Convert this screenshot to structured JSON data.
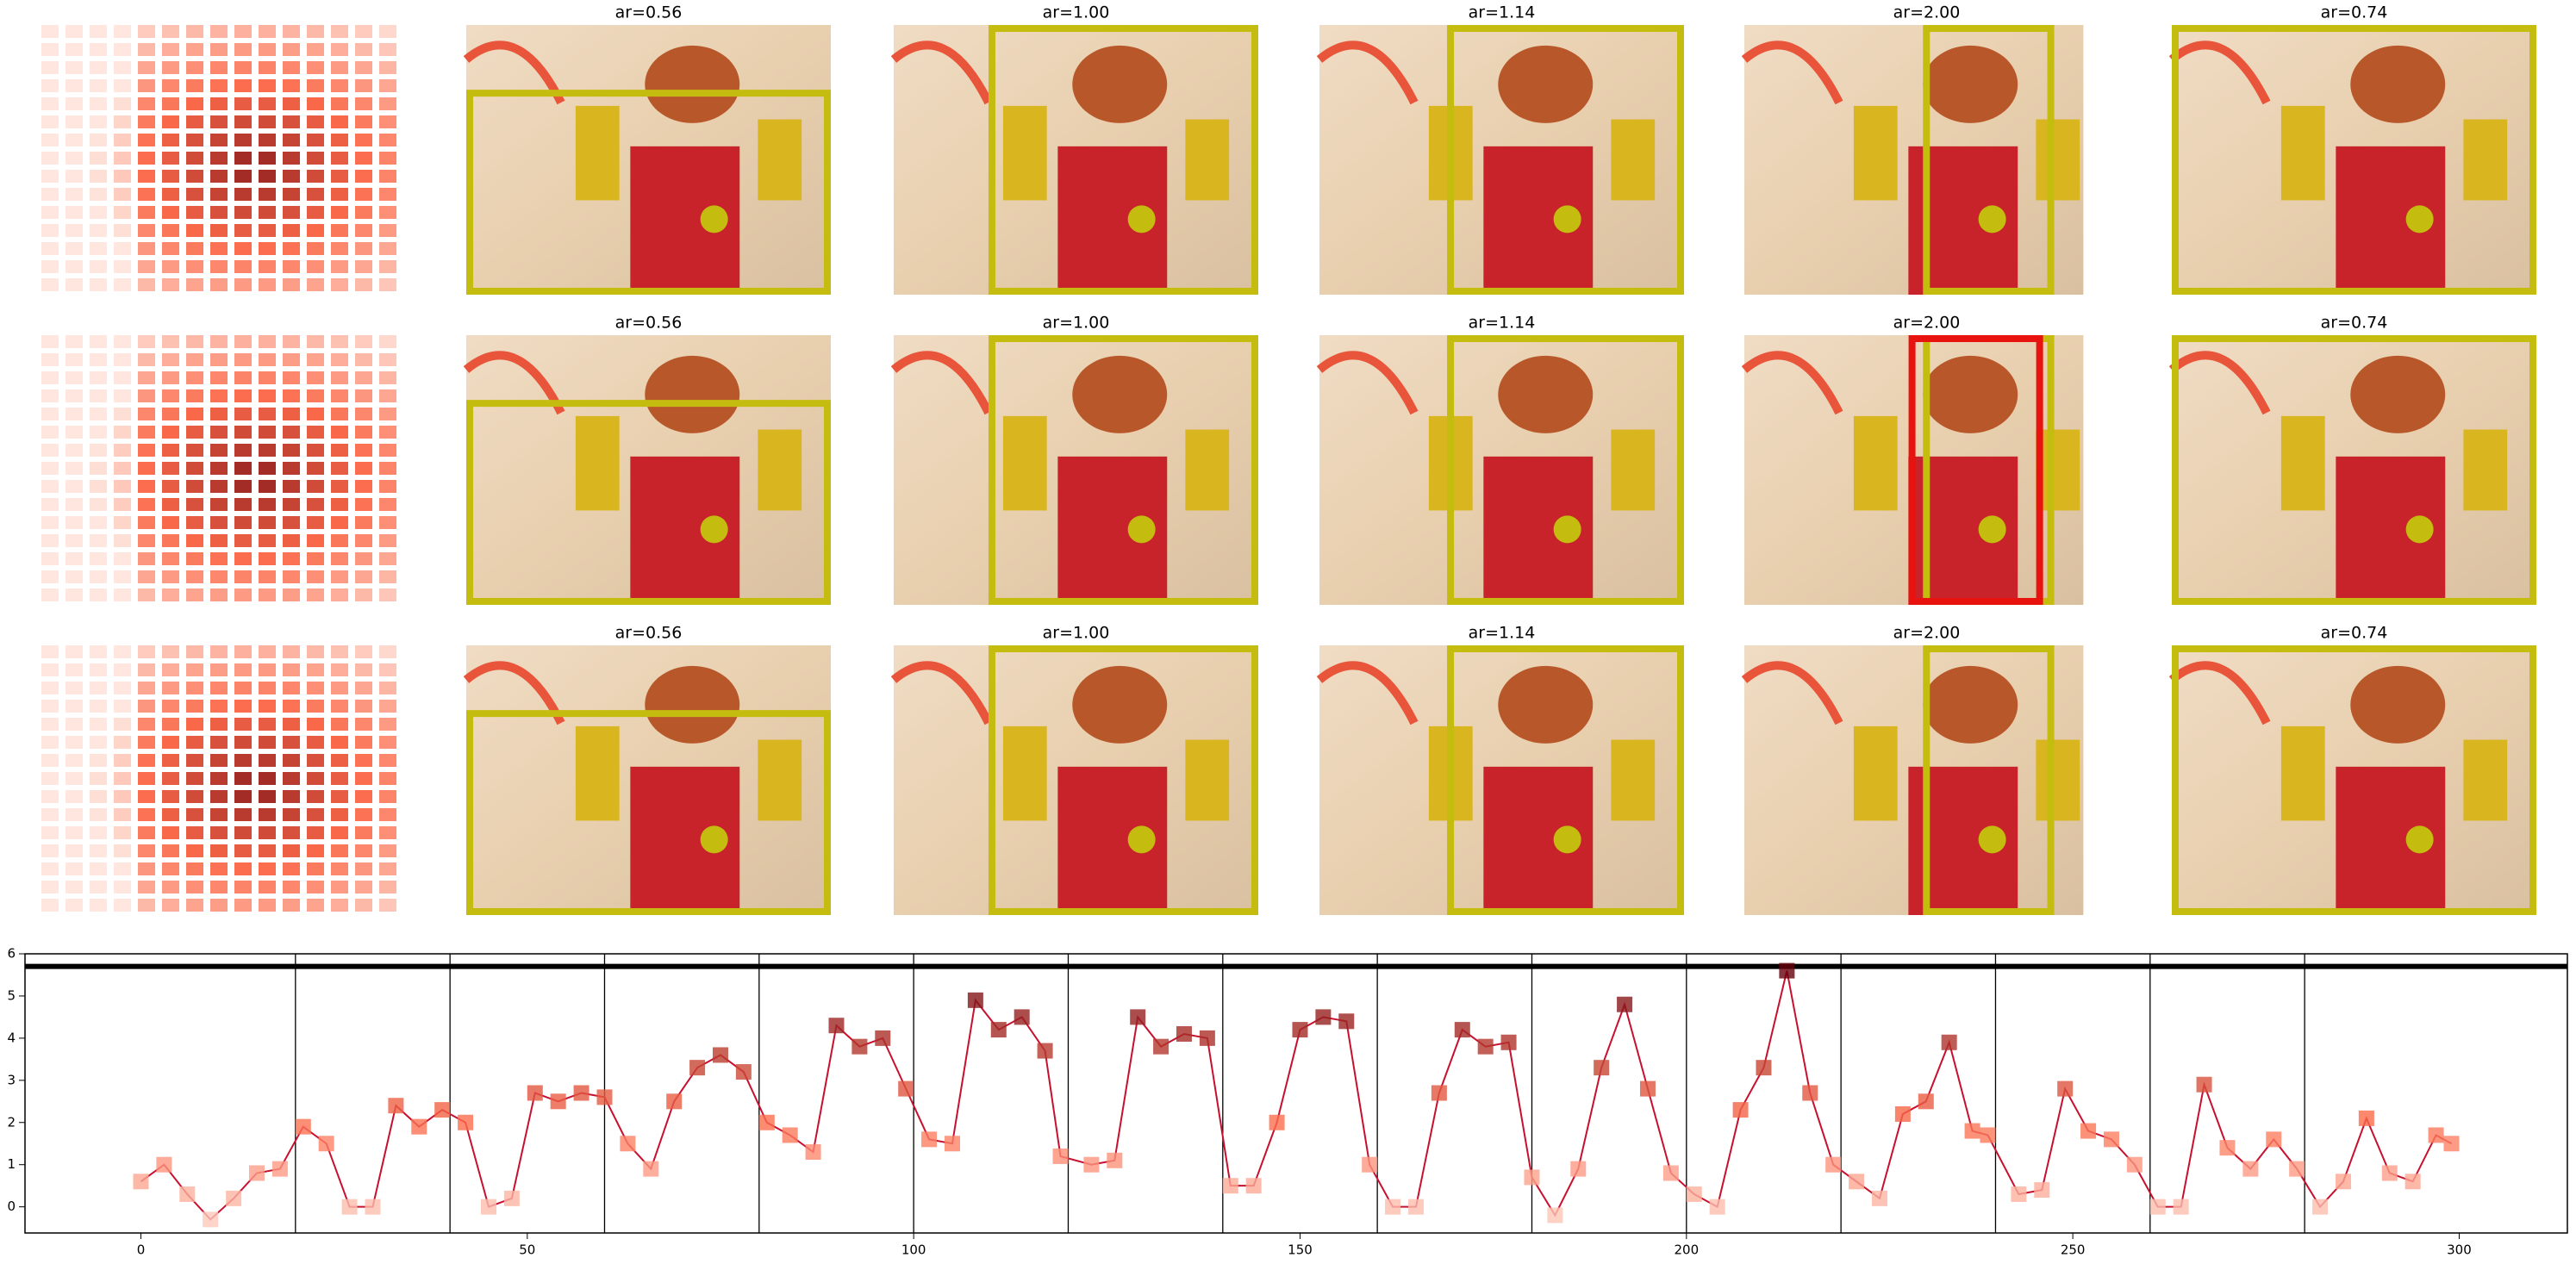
{
  "panels": {
    "rows": [
      [
        "ar=0.56",
        "ar=1.00",
        "ar=1.14",
        "ar=2.00",
        "ar=0.74"
      ],
      [
        "ar=0.56",
        "ar=1.00",
        "ar=1.14",
        "ar=2.00",
        "ar=0.74"
      ],
      [
        "ar=0.56",
        "ar=1.00",
        "ar=1.14",
        "ar=2.00",
        "ar=0.74"
      ]
    ]
  },
  "chart_data": {
    "type": "line",
    "x": [
      0,
      3,
      6,
      9,
      12,
      15,
      18,
      21,
      24,
      27,
      30,
      33,
      36,
      39,
      42,
      45,
      48,
      51,
      54,
      57,
      60,
      63,
      66,
      69,
      72,
      75,
      78,
      81,
      84,
      87,
      90,
      93,
      96,
      99,
      102,
      105,
      108,
      111,
      114,
      117,
      119,
      123,
      126,
      129,
      132,
      135,
      138,
      141,
      144,
      147,
      150,
      153,
      156,
      159,
      162,
      165,
      168,
      171,
      174,
      177,
      180,
      183,
      186,
      189,
      192,
      195,
      198,
      201,
      204,
      207,
      210,
      213,
      216,
      219,
      222,
      225,
      228,
      231,
      234,
      237,
      239,
      243,
      246,
      249,
      252,
      255,
      258,
      261,
      264,
      267,
      270,
      273,
      276,
      279,
      282,
      285,
      288,
      291,
      294,
      297,
      299
    ],
    "series": [
      {
        "color": "#c8102e",
        "values": [
          0.6,
          1.0,
          0.3,
          -0.3,
          0.2,
          0.8,
          0.9,
          1.9,
          1.5,
          0.0,
          0.0,
          2.4,
          1.9,
          2.3,
          2.0,
          0.0,
          0.2,
          2.7,
          2.5,
          2.7,
          2.6,
          1.5,
          0.9,
          2.5,
          3.3,
          3.6,
          3.2,
          2.0,
          1.7,
          1.3,
          4.3,
          3.8,
          4.0,
          2.8,
          1.6,
          1.5,
          4.9,
          4.2,
          4.5,
          3.7,
          1.2,
          1.0,
          1.1,
          4.5,
          3.8,
          4.1,
          4.0,
          0.5,
          0.5,
          2.0,
          4.2,
          4.5,
          4.4,
          1.0,
          0.0,
          0.0,
          2.7,
          4.2,
          3.8,
          3.9,
          0.7,
          -0.2,
          0.9,
          3.3,
          4.8,
          2.8,
          0.8,
          0.3,
          0.0,
          2.3,
          3.3,
          5.6,
          2.7,
          1.0,
          0.6,
          0.2,
          2.2,
          2.5,
          3.9,
          1.8,
          1.7,
          0.3,
          0.4,
          2.8,
          1.8,
          1.6,
          1.0,
          0.0,
          0.0,
          2.9,
          1.4,
          0.9,
          1.6,
          0.9,
          0.0,
          0.6,
          2.1,
          0.8,
          0.6,
          1.7,
          1.5
        ]
      }
    ],
    "xlim": [
      -15,
      314
    ],
    "ylim": [
      -0.62,
      6
    ],
    "xticks": [
      0,
      50,
      100,
      150,
      200,
      250,
      300
    ],
    "yticks": [
      0,
      1,
      2,
      3,
      4,
      5,
      6
    ],
    "vlines": [
      20,
      40,
      60,
      80,
      100,
      120,
      140,
      160,
      180,
      200,
      220,
      240,
      260,
      280
    ],
    "hline": 5.7
  }
}
